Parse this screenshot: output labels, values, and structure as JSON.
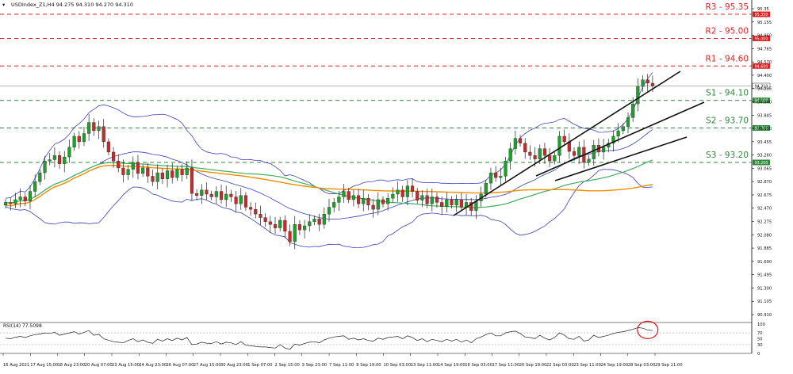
{
  "header": {
    "symbol_line": "USDIndex_Z1,H4  94.275 94.310 94.270 94.310"
  },
  "colors": {
    "bull": "#1f9e2c",
    "bear": "#c62a2a",
    "wick": "#222222",
    "bollinger": "#3b3fbf",
    "ma_fast": "#3fae5a",
    "ma_slow": "#f08c00",
    "resistance": "#e02020",
    "support": "#2c8a3a",
    "trendline": "#111111",
    "rsi_line": "#222222",
    "rsi_highlight": "#d81b1b"
  },
  "chart_data": [
    {
      "type": "candlestick",
      "title": "",
      "ylim": [
        90.9,
        95.5
      ],
      "yticks": [
        "95.35",
        "95.155",
        "94.960",
        "94.765",
        "94.570",
        "94.400",
        "94.235",
        "94.040",
        "93.845",
        "93.650",
        "93.455",
        "93.260",
        "93.065",
        "92.870",
        "92.675",
        "92.470",
        "92.275",
        "92.080",
        "91.885",
        "91.690",
        "91.495",
        "91.300",
        "91.105",
        "90.910"
      ],
      "x_axis_labels": [
        "16 Aug 2021",
        "17 Aug 15:00",
        "18 Aug 23:00",
        "20 Aug 07:00",
        "23 Aug 15:00",
        "24 Aug 23:00",
        "26 Aug 07:00",
        "27 Aug 15:00",
        "30 Aug 23:00",
        "1 Sep 07:00",
        "2 Sep 15:00",
        "3 Sep 23:00",
        "7 Sep 11:00",
        "8 Sep 19:00",
        "10 Sep 03:00",
        "13 Sep 11:00",
        "14 Sep 19:00",
        "16 Sep 03:00",
        "17 Sep 11:00",
        "20 Sep 19:00",
        "22 Sep 03:00",
        "23 Sep 11:00",
        "24 Sep 19:00",
        "28 Sep 03:00",
        "29 Sep 11:00"
      ],
      "closes": [
        92.62,
        92.6,
        92.66,
        92.7,
        92.64,
        92.78,
        92.92,
        93.05,
        93.22,
        93.24,
        93.3,
        93.18,
        93.28,
        93.42,
        93.58,
        93.5,
        93.62,
        93.78,
        93.66,
        93.72,
        93.5,
        93.35,
        93.22,
        93.12,
        93.02,
        93.1,
        93.2,
        93.04,
        93.12,
        93.0,
        92.92,
        93.05,
        92.96,
        93.08,
        92.98,
        93.1,
        93.02,
        93.12,
        92.75,
        92.72,
        92.8,
        92.74,
        92.7,
        92.78,
        92.66,
        92.74,
        92.7,
        92.6,
        92.72,
        92.55,
        92.52,
        92.45,
        92.4,
        92.34,
        92.3,
        92.25,
        92.36,
        92.2,
        92.05,
        92.3,
        92.22,
        92.28,
        92.34,
        92.38,
        92.3,
        92.45,
        92.55,
        92.62,
        92.7,
        92.78,
        92.66,
        92.72,
        92.6,
        92.68,
        92.58,
        92.52,
        92.66,
        92.6,
        92.68,
        92.74,
        92.8,
        92.7,
        92.86,
        92.78,
        92.65,
        92.72,
        92.6,
        92.7,
        92.62,
        92.56,
        92.66,
        92.58,
        92.66,
        92.55,
        92.62,
        92.5,
        92.64,
        92.74,
        92.9,
        93.05,
        92.98,
        93.0,
        93.22,
        93.4,
        93.55,
        93.48,
        93.35,
        93.3,
        93.25,
        93.4,
        93.3,
        93.22,
        93.3,
        93.58,
        93.5,
        93.36,
        93.3,
        93.42,
        93.2,
        93.25,
        93.45,
        93.35,
        93.42,
        93.48,
        93.58,
        93.66,
        93.72,
        93.85,
        94.05,
        94.3,
        94.4,
        94.35,
        94.31
      ],
      "supports": [
        {
          "label": "S1 - 94.10",
          "value": 94.1,
          "tag": "94.100"
        },
        {
          "label": "S2 - 93.70",
          "value": 93.7,
          "tag": "93.700"
        },
        {
          "label": "S3 - 93.20",
          "value": 93.2,
          "tag": "93.200"
        }
      ],
      "resistances": [
        {
          "label": "R1 - 94.60",
          "value": 94.6,
          "tag": "94.600"
        },
        {
          "label": "R2 - 95.00",
          "value": 95.0,
          "tag": "95.000"
        },
        {
          "label": "R3 - 95.35",
          "value": 95.35,
          "tag": "95.350"
        }
      ],
      "current_price_tag": "94.310",
      "current_price": 94.31
    },
    {
      "type": "line",
      "title": "RSI(14) 77.5098",
      "ylim": [
        0,
        100
      ],
      "yticks": [
        "100",
        "70",
        "50",
        "30",
        "0"
      ],
      "values": [
        52,
        50,
        55,
        58,
        54,
        60,
        64,
        66,
        70,
        68,
        72,
        62,
        66,
        70,
        74,
        66,
        72,
        78,
        62,
        65,
        50,
        45,
        40,
        38,
        36,
        44,
        50,
        40,
        46,
        38,
        34,
        48,
        42,
        50,
        44,
        52,
        46,
        54,
        30,
        32,
        38,
        35,
        34,
        40,
        32,
        38,
        36,
        30,
        40,
        28,
        26,
        24,
        22,
        22,
        20,
        18,
        30,
        18,
        14,
        32,
        28,
        34,
        38,
        40,
        36,
        46,
        52,
        56,
        58,
        60,
        48,
        52,
        46,
        50,
        44,
        42,
        52,
        48,
        54,
        56,
        58,
        50,
        60,
        54,
        44,
        50,
        40,
        48,
        44,
        40,
        48,
        42,
        48,
        38,
        46,
        36,
        50,
        56,
        64,
        70,
        60,
        60,
        70,
        74,
        76,
        68,
        56,
        54,
        50,
        62,
        52,
        46,
        54,
        70,
        62,
        50,
        48,
        58,
        42,
        46,
        62,
        54,
        58,
        62,
        68,
        72,
        74,
        78,
        82,
        88,
        86,
        80,
        77.5
      ]
    }
  ]
}
